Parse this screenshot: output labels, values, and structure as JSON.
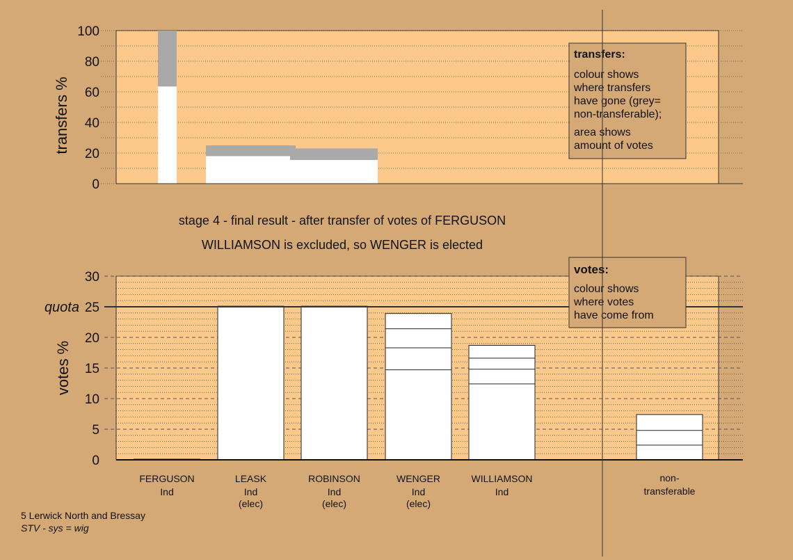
{
  "chart_data": [
    {
      "type": "bar",
      "ylabel": "transfers %",
      "ylim": [
        0,
        100
      ],
      "yticks": [
        "0",
        "20",
        "40",
        "60",
        "80",
        "100"
      ],
      "x": [
        "FERGUSON",
        "LEASK",
        "ROBINSON"
      ],
      "series": [
        {
          "values": [
            63.5,
            18,
            15.5
          ]
        },
        {
          "values": [
            36.5,
            7,
            7.5
          ]
        }
      ],
      "legend": {
        "title": "transfers:",
        "lines": [
          "colour shows",
          "where transfers",
          "have gone (grey=",
          "non-transferable);"
        ],
        "lines2": [
          "area shows",
          "amount of votes"
        ]
      }
    },
    {
      "type": "bar",
      "ylabel": "votes %",
      "ylim": [
        0,
        30
      ],
      "yticks": [
        "0",
        "5",
        "10",
        "15",
        "20",
        "25",
        "30"
      ],
      "quota_label": "quota",
      "quota": 25,
      "categories": [
        {
          "name": "FERGUSON",
          "party": "Ind",
          "status": ""
        },
        {
          "name": "LEASK",
          "party": "Ind",
          "status": "(elec)"
        },
        {
          "name": "ROBINSON",
          "party": "Ind",
          "status": "(elec)"
        },
        {
          "name": "WENGER",
          "party": "Ind",
          "status": "(elec)"
        },
        {
          "name": "WILLIAMSON",
          "party": "Ind",
          "status": ""
        }
      ],
      "nontransferable_label": [
        "non-",
        "transferable"
      ],
      "totals": [
        0,
        25.1,
        25.1,
        23.9,
        18.7,
        7.4
      ],
      "segments": [
        [],
        [],
        [],
        [
          14.7,
          18.3,
          21.4
        ],
        [
          12.4,
          14.8,
          16.6
        ],
        [
          2.4,
          4.8
        ]
      ],
      "legend": {
        "title": "votes:",
        "lines": [
          "colour shows",
          "where votes",
          "have come from"
        ]
      }
    }
  ],
  "caption": {
    "line1": "stage 4 - final result - after transfer of votes of FERGUSON",
    "line2": "WILLIAMSON is excluded, so WENGER is elected"
  },
  "footer": {
    "ward": "5 Lerwick North and Bressay",
    "system": "STV - sys = wig"
  }
}
